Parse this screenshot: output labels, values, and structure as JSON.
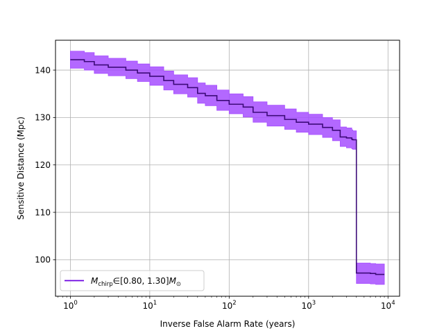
{
  "chart_data": {
    "type": "line",
    "xlabel": "Inverse False Alarm Rate (years)",
    "ylabel": "Sensitive Distance (Mpc)",
    "x_scale": "log",
    "xlim": [
      0.65,
      14000
    ],
    "ylim": [
      92.3,
      146.3
    ],
    "grid": true,
    "legend_position": "lower-left",
    "x_ticks": [
      {
        "value": 1,
        "base": "10",
        "exp": "0"
      },
      {
        "value": 10,
        "base": "10",
        "exp": "1"
      },
      {
        "value": 100,
        "base": "10",
        "exp": "2"
      },
      {
        "value": 1000,
        "base": "10",
        "exp": "3"
      },
      {
        "value": 10000,
        "base": "10",
        "exp": "4"
      }
    ],
    "y_ticks": [
      100,
      110,
      120,
      130,
      140
    ],
    "series": [
      {
        "name": "M_chirp ∈ [0.80, 1.30] M⊙",
        "name_parts": {
          "symbol": "M",
          "subscript": "chirp",
          "range": "∈[0.80, 1.30]",
          "unit": "M",
          "unit_subscript": "⊙"
        },
        "color": "#6a00e0",
        "band_color": "#a64dff",
        "x": [
          1,
          1.5,
          2,
          3,
          5,
          7,
          10,
          15,
          20,
          30,
          40,
          50,
          70,
          100,
          150,
          200,
          300,
          500,
          700,
          1000,
          1500,
          2000,
          2500,
          3000,
          3500,
          3600,
          4000,
          5000,
          6000,
          7000,
          9000
        ],
        "y": [
          142.2,
          141.8,
          141.1,
          140.6,
          140.0,
          139.4,
          138.7,
          137.8,
          137.0,
          136.3,
          135.1,
          134.6,
          133.6,
          132.8,
          132.2,
          131.1,
          130.4,
          129.6,
          129.0,
          128.6,
          127.9,
          127.3,
          125.9,
          125.7,
          125.4,
          125.3,
          97.2,
          97.2,
          97.1,
          96.9,
          96.9
        ],
        "lower": [
          140.4,
          140.0,
          139.3,
          138.8,
          138.2,
          137.6,
          136.8,
          135.8,
          135.0,
          134.3,
          133.0,
          132.5,
          131.5,
          130.8,
          130.1,
          129.0,
          128.2,
          127.5,
          126.9,
          126.4,
          125.8,
          125.1,
          123.9,
          123.6,
          123.4,
          123.3,
          95.0,
          95.0,
          94.9,
          94.8,
          94.8
        ],
        "upper": [
          144.0,
          143.7,
          143.0,
          142.5,
          141.9,
          141.3,
          140.7,
          139.8,
          139.0,
          138.4,
          137.3,
          136.8,
          135.8,
          135.0,
          134.4,
          133.3,
          132.6,
          131.8,
          131.1,
          130.7,
          130.0,
          129.5,
          128.0,
          127.8,
          127.4,
          127.2,
          99.3,
          99.3,
          99.2,
          99.1,
          99.1
        ]
      }
    ]
  }
}
